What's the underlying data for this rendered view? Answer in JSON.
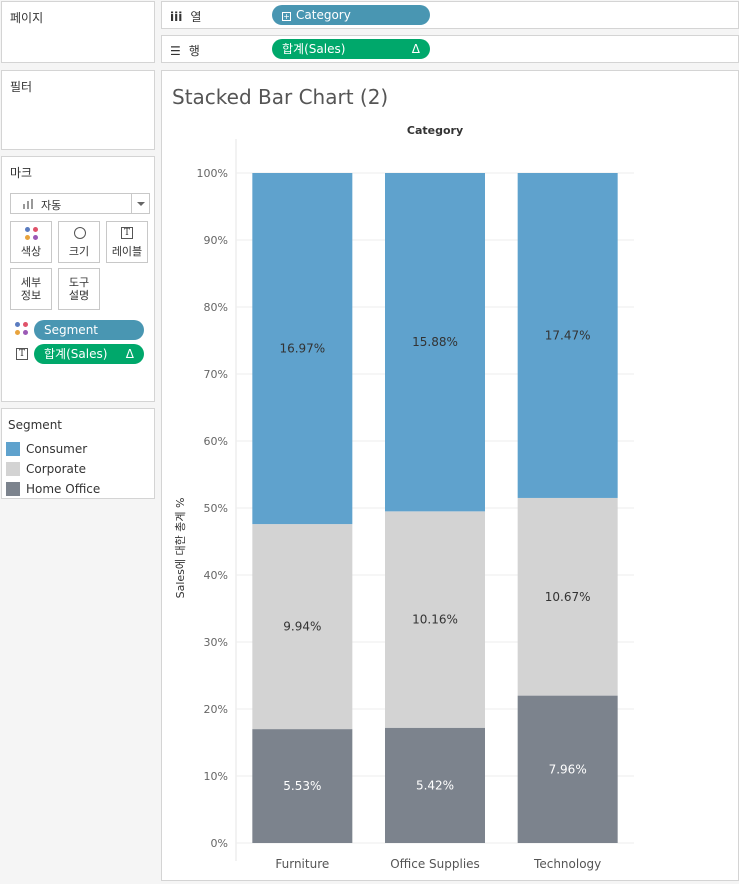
{
  "sidebar": {
    "pages_title": "페이지",
    "filters_title": "필터",
    "marks": {
      "title": "마크",
      "type_label": "자동",
      "buttons": {
        "color": "색상",
        "size": "크기",
        "label": "레이블",
        "detail_line1": "세부",
        "detail_line2": "정보",
        "tooltip_line1": "도구",
        "tooltip_line2": "설명"
      },
      "fields": [
        {
          "label": "Segment",
          "encoding": "color"
        },
        {
          "label": "합계(Sales)",
          "encoding": "label",
          "delta": "Δ"
        }
      ]
    },
    "legend": {
      "title": "Segment",
      "items": [
        {
          "label": "Consumer",
          "color": "#5fa2cd"
        },
        {
          "label": "Corporate",
          "color": "#d3d3d3"
        },
        {
          "label": "Home Office",
          "color": "#7c838d"
        }
      ]
    }
  },
  "shelves": {
    "columns": {
      "label": "열",
      "pill": "Category"
    },
    "rows": {
      "label": "행",
      "pill": "합계(Sales)",
      "delta": "Δ"
    }
  },
  "chart_data": {
    "type": "bar",
    "stacked": true,
    "title": "Stacked Bar Chart (2)",
    "header": "Category",
    "ylabel": "Sales에 대한 총계 %",
    "ylim": [
      0,
      100
    ],
    "yticks": [
      "0%",
      "10%",
      "20%",
      "30%",
      "40%",
      "50%",
      "60%",
      "70%",
      "80%",
      "90%",
      "100%"
    ],
    "categories": [
      "Furniture",
      "Office Supplies",
      "Technology"
    ],
    "series": [
      {
        "name": "Home Office",
        "color": "#7c838d",
        "values": [
          17.0,
          17.2,
          22.0
        ],
        "labels": [
          "5.53%",
          "5.42%",
          "7.96%"
        ],
        "label_color": "#ffffff"
      },
      {
        "name": "Corporate",
        "color": "#d3d3d3",
        "values": [
          30.6,
          32.3,
          29.5
        ],
        "labels": [
          "9.94%",
          "10.16%",
          "10.67%"
        ],
        "label_color": "#333333"
      },
      {
        "name": "Consumer",
        "color": "#5fa2cd",
        "values": [
          52.4,
          50.5,
          48.5
        ],
        "labels": [
          "16.97%",
          "15.88%",
          "17.47%"
        ],
        "label_color": "#333333"
      }
    ],
    "grid": true
  }
}
